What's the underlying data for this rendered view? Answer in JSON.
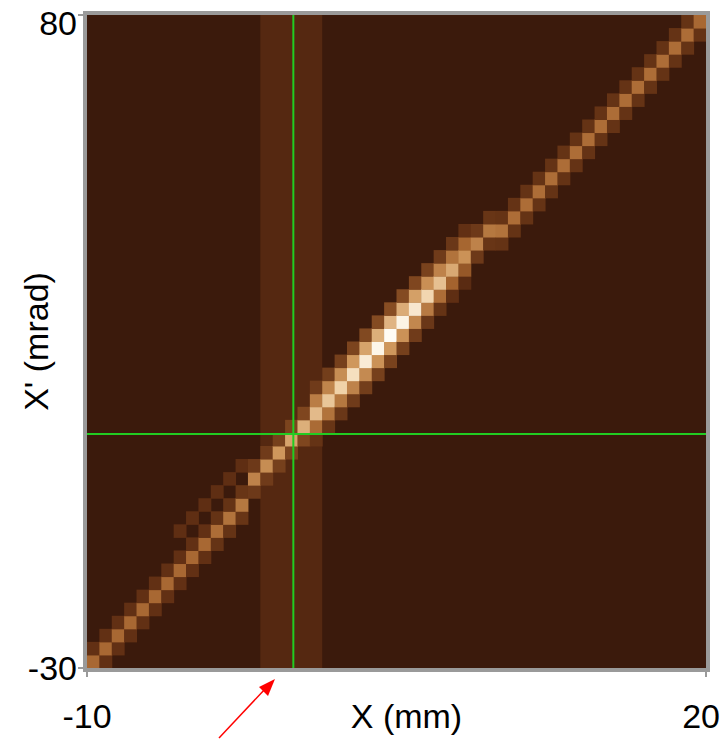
{
  "chart_data": {
    "type": "heatmap",
    "x_label": "X (mm)",
    "y_label": "X' (mrad)",
    "xlim": [
      -10,
      20
    ],
    "ylim": [
      -30,
      80
    ],
    "xticks": [
      -10,
      20
    ],
    "yticks": [
      -30,
      80
    ],
    "color_range": [
      0,
      100
    ],
    "cell_width": 0.6,
    "cell_height": 2.2,
    "band": {
      "x": [
        -1.6,
        1.4
      ],
      "value": 12
    },
    "crosshair": {
      "x": 0,
      "y": 9.4
    },
    "cells": [
      [
        -10,
        -30,
        42
      ],
      [
        -10,
        -27.8,
        17
      ],
      [
        -9.4,
        -30,
        17
      ],
      [
        -9.4,
        -27.8,
        42
      ],
      [
        -9.4,
        -25.6,
        17
      ],
      [
        -8.8,
        -27.8,
        17
      ],
      [
        -8.8,
        -25.6,
        42
      ],
      [
        -8.8,
        -23.4,
        17
      ],
      [
        -8.2,
        -25.6,
        17
      ],
      [
        -8.2,
        -23.4,
        42
      ],
      [
        -8.2,
        -21.2,
        17
      ],
      [
        -7.6,
        -23.4,
        17
      ],
      [
        -7.6,
        -21.2,
        42
      ],
      [
        -7.6,
        -19,
        17
      ],
      [
        -7,
        -21.2,
        17
      ],
      [
        -7,
        -19,
        42
      ],
      [
        -7,
        -16.8,
        17
      ],
      [
        -6.4,
        -19,
        17
      ],
      [
        -6.4,
        -16.8,
        42
      ],
      [
        -6.4,
        -14.6,
        17
      ],
      [
        -5.8,
        -16.8,
        17
      ],
      [
        -5.8,
        -14.6,
        42
      ],
      [
        -5.8,
        -12.4,
        17
      ],
      [
        -5.8,
        -8,
        16
      ],
      [
        -5.2,
        -14.6,
        17
      ],
      [
        -5.2,
        -12.4,
        42
      ],
      [
        -5.2,
        -10.2,
        17
      ],
      [
        -5.2,
        -5.8,
        16
      ],
      [
        -4.6,
        -12.4,
        17
      ],
      [
        -4.6,
        -10.2,
        42
      ],
      [
        -4.6,
        -8,
        17
      ],
      [
        -4.6,
        -3.6,
        16
      ],
      [
        -4,
        -10.2,
        18
      ],
      [
        -4,
        -8,
        44
      ],
      [
        -4,
        -5.8,
        18
      ],
      [
        -4,
        -1.4,
        16
      ],
      [
        -3.4,
        -8,
        18
      ],
      [
        -3.4,
        -5.8,
        46
      ],
      [
        -3.4,
        -3.6,
        18
      ],
      [
        -3.4,
        0.8,
        16
      ],
      [
        -2.8,
        -5.8,
        19
      ],
      [
        -2.8,
        -3.6,
        48
      ],
      [
        -2.8,
        -1.4,
        19
      ],
      [
        -2.8,
        3,
        16
      ],
      [
        -2.2,
        -1.4,
        21
      ],
      [
        -2.2,
        0.8,
        52
      ],
      [
        -2.2,
        3,
        21
      ],
      [
        -1.6,
        0.8,
        22
      ],
      [
        -1.6,
        3,
        56
      ],
      [
        -1.6,
        5.2,
        22
      ],
      [
        -1,
        3,
        24
      ],
      [
        -1,
        5.2,
        60
      ],
      [
        -1,
        7.4,
        24
      ],
      [
        -0.4,
        5.2,
        26
      ],
      [
        -0.4,
        7.4,
        64
      ],
      [
        -0.4,
        9.6,
        26
      ],
      [
        0.2,
        7.4,
        27
      ],
      [
        0.2,
        9.6,
        68
      ],
      [
        0.2,
        11.8,
        27
      ],
      [
        0.8,
        7.4,
        18
      ],
      [
        0.8,
        9.6,
        43
      ],
      [
        0.8,
        11.8,
        72
      ],
      [
        0.8,
        14,
        50
      ],
      [
        0.8,
        16.2,
        22
      ],
      [
        1.4,
        9.6,
        19
      ],
      [
        1.4,
        11.8,
        46
      ],
      [
        1.4,
        14,
        76
      ],
      [
        1.4,
        16.2,
        53
      ],
      [
        1.4,
        18.4,
        23
      ],
      [
        2,
        11.8,
        20
      ],
      [
        2,
        14,
        48
      ],
      [
        2,
        16.2,
        80
      ],
      [
        2,
        18.4,
        56
      ],
      [
        2,
        20.6,
        24
      ],
      [
        2.6,
        14,
        22
      ],
      [
        2.6,
        16.2,
        52
      ],
      [
        2.6,
        18.4,
        86
      ],
      [
        2.6,
        20.6,
        60
      ],
      [
        2.6,
        22.8,
        26
      ],
      [
        3.2,
        16.2,
        23
      ],
      [
        3.2,
        18.4,
        55
      ],
      [
        3.2,
        20.6,
        92
      ],
      [
        3.2,
        22.8,
        64
      ],
      [
        3.2,
        25,
        28
      ],
      [
        3.8,
        18.4,
        24
      ],
      [
        3.8,
        20.6,
        58
      ],
      [
        3.8,
        22.8,
        97
      ],
      [
        3.8,
        25,
        68
      ],
      [
        3.8,
        27.2,
        29
      ],
      [
        4.4,
        20.6,
        25
      ],
      [
        4.4,
        22.8,
        60
      ],
      [
        4.4,
        25,
        100
      ],
      [
        4.4,
        27.2,
        70
      ],
      [
        4.4,
        29.4,
        30
      ],
      [
        5,
        22.8,
        24
      ],
      [
        5,
        25,
        58
      ],
      [
        5,
        27.2,
        96
      ],
      [
        5,
        29.4,
        67
      ],
      [
        5,
        31.6,
        29
      ],
      [
        5.6,
        25,
        22
      ],
      [
        5.6,
        27.2,
        54
      ],
      [
        5.6,
        29.4,
        90
      ],
      [
        5.6,
        31.6,
        63
      ],
      [
        5.6,
        33.8,
        27
      ],
      [
        6.2,
        27.2,
        20
      ],
      [
        6.2,
        29.4,
        49
      ],
      [
        6.2,
        31.6,
        82
      ],
      [
        6.2,
        33.8,
        57
      ],
      [
        6.2,
        36,
        25
      ],
      [
        6.8,
        29.4,
        18
      ],
      [
        6.8,
        31.6,
        44
      ],
      [
        6.8,
        33.8,
        74
      ],
      [
        6.8,
        36,
        52
      ],
      [
        6.8,
        38.2,
        22
      ],
      [
        7.4,
        31.6,
        16
      ],
      [
        7.4,
        33.8,
        40
      ],
      [
        7.4,
        36,
        66
      ],
      [
        7.4,
        38.2,
        46
      ],
      [
        7.4,
        40.4,
        20
      ],
      [
        8,
        33.8,
        14
      ],
      [
        8,
        36,
        35
      ],
      [
        8,
        38.2,
        58
      ],
      [
        8,
        40.4,
        41
      ],
      [
        8,
        42.6,
        17
      ],
      [
        8.6,
        38.2,
        21
      ],
      [
        8.6,
        40.4,
        52
      ],
      [
        8.6,
        42.6,
        21
      ],
      [
        9.2,
        40.4,
        19
      ],
      [
        9.2,
        42.6,
        48
      ],
      [
        9.2,
        44.8,
        19
      ],
      [
        9.8,
        40.4,
        18
      ],
      [
        9.8,
        42.6,
        46
      ],
      [
        9.8,
        44.8,
        18
      ],
      [
        10.4,
        42.6,
        18
      ],
      [
        10.4,
        44.8,
        44
      ],
      [
        10.4,
        47,
        18
      ],
      [
        11,
        44.8,
        18
      ],
      [
        11,
        47,
        44
      ],
      [
        11,
        49.2,
        18
      ],
      [
        11.6,
        47,
        18
      ],
      [
        11.6,
        49.2,
        44
      ],
      [
        11.6,
        51.4,
        18
      ],
      [
        12.2,
        49.2,
        18
      ],
      [
        12.2,
        51.4,
        44
      ],
      [
        12.2,
        53.6,
        18
      ],
      [
        12.8,
        51.4,
        18
      ],
      [
        12.8,
        53.6,
        44
      ],
      [
        12.8,
        55.8,
        18
      ],
      [
        13.4,
        53.6,
        18
      ],
      [
        13.4,
        55.8,
        44
      ],
      [
        13.4,
        58,
        18
      ],
      [
        14,
        55.8,
        18
      ],
      [
        14,
        58,
        44
      ],
      [
        14,
        60.2,
        18
      ],
      [
        14.6,
        58,
        18
      ],
      [
        14.6,
        60.2,
        44
      ],
      [
        14.6,
        62.4,
        18
      ],
      [
        15.2,
        60.2,
        18
      ],
      [
        15.2,
        62.4,
        44
      ],
      [
        15.2,
        64.6,
        18
      ],
      [
        15.8,
        62.4,
        18
      ],
      [
        15.8,
        64.6,
        44
      ],
      [
        15.8,
        66.8,
        18
      ],
      [
        16.4,
        64.6,
        18
      ],
      [
        16.4,
        66.8,
        44
      ],
      [
        16.4,
        69,
        18
      ],
      [
        17,
        66.8,
        18
      ],
      [
        17,
        69,
        44
      ],
      [
        17,
        71.2,
        18
      ],
      [
        17.6,
        69,
        18
      ],
      [
        17.6,
        71.2,
        44
      ],
      [
        17.6,
        73.4,
        18
      ],
      [
        18.2,
        71.2,
        18
      ],
      [
        18.2,
        73.4,
        44
      ],
      [
        18.2,
        75.6,
        18
      ],
      [
        18.8,
        73.4,
        18
      ],
      [
        18.8,
        75.6,
        44
      ],
      [
        18.8,
        77.8,
        18
      ],
      [
        19.4,
        75.6,
        18
      ],
      [
        19.4,
        77.8,
        42
      ]
    ]
  }
}
